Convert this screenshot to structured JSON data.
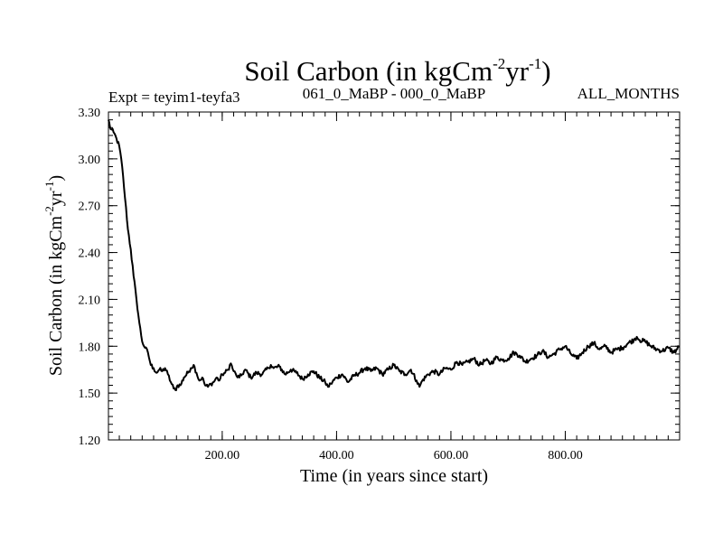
{
  "chart_data": {
    "type": "line",
    "title": {
      "text": "Soil Carbon (in kgCm",
      "sup1": "-2",
      "mid": "yr",
      "sup2": "-1",
      "end": ")"
    },
    "expt_label": "Expt = teyim1-teyfa3",
    "period_label": "061_0_MaBP - 000_0_MaBP",
    "months_label": "ALL_MONTHS",
    "xlabel": "Time (in years since start)",
    "ylabel": {
      "text": "Soil Carbon (in kgCm",
      "sup1": "-2",
      "mid": "yr",
      "sup2": "-1",
      "end": ")"
    },
    "xlim": [
      1,
      1000
    ],
    "ylim": [
      1.2,
      3.3
    ],
    "x_ticks": [
      200,
      400,
      600,
      800
    ],
    "x_tick_labels": [
      "200.00",
      "400.00",
      "600.00",
      "800.00"
    ],
    "y_ticks": [
      1.2,
      1.5,
      1.8,
      2.1,
      2.4,
      2.7,
      3.0,
      3.3
    ],
    "y_tick_labels": [
      "1.20",
      "1.50",
      "1.80",
      "2.10",
      "2.40",
      "2.70",
      "3.00",
      "3.30"
    ],
    "series": [
      {
        "name": "soil carbon",
        "color": "#000000",
        "x": [
          1,
          5,
          10,
          15,
          20,
          25,
          30,
          35,
          40,
          45,
          50,
          55,
          60,
          65,
          70,
          75,
          80,
          85,
          90,
          95,
          100,
          105,
          110,
          115,
          118,
          122,
          127,
          133,
          140,
          145,
          150,
          155,
          160,
          165,
          170,
          175,
          180,
          185,
          190,
          195,
          200,
          205,
          210,
          215,
          220,
          225,
          230,
          235,
          240,
          250,
          260,
          270,
          280,
          285,
          290,
          300,
          310,
          320,
          330,
          340,
          350,
          360,
          370,
          380,
          385,
          390,
          400,
          410,
          420,
          430,
          440,
          450,
          460,
          470,
          480,
          490,
          500,
          510,
          520,
          530,
          540,
          545,
          550,
          560,
          570,
          580,
          590,
          600,
          610,
          620,
          630,
          640,
          650,
          660,
          670,
          680,
          690,
          700,
          710,
          720,
          730,
          740,
          750,
          760,
          770,
          780,
          790,
          800,
          810,
          820,
          830,
          840,
          850,
          860,
          870,
          880,
          890,
          900,
          910,
          920,
          925,
          930,
          940,
          950,
          960,
          970,
          980,
          990,
          1000
        ],
        "y": [
          3.25,
          3.19,
          3.17,
          3.13,
          3.08,
          2.95,
          2.75,
          2.55,
          2.42,
          2.25,
          2.1,
          1.95,
          1.83,
          1.79,
          1.76,
          1.68,
          1.66,
          1.63,
          1.65,
          1.64,
          1.66,
          1.62,
          1.57,
          1.53,
          1.52,
          1.55,
          1.55,
          1.6,
          1.63,
          1.66,
          1.68,
          1.63,
          1.58,
          1.6,
          1.55,
          1.54,
          1.56,
          1.57,
          1.6,
          1.58,
          1.62,
          1.63,
          1.65,
          1.69,
          1.64,
          1.61,
          1.6,
          1.62,
          1.65,
          1.6,
          1.63,
          1.62,
          1.66,
          1.68,
          1.66,
          1.67,
          1.62,
          1.65,
          1.63,
          1.59,
          1.62,
          1.64,
          1.6,
          1.57,
          1.54,
          1.56,
          1.6,
          1.62,
          1.57,
          1.61,
          1.63,
          1.66,
          1.64,
          1.66,
          1.62,
          1.65,
          1.68,
          1.64,
          1.62,
          1.65,
          1.58,
          1.54,
          1.58,
          1.62,
          1.64,
          1.62,
          1.66,
          1.65,
          1.7,
          1.68,
          1.7,
          1.72,
          1.68,
          1.71,
          1.69,
          1.73,
          1.71,
          1.72,
          1.76,
          1.74,
          1.7,
          1.72,
          1.74,
          1.77,
          1.73,
          1.75,
          1.78,
          1.8,
          1.75,
          1.72,
          1.76,
          1.8,
          1.82,
          1.78,
          1.8,
          1.76,
          1.78,
          1.79,
          1.82,
          1.84,
          1.86,
          1.84,
          1.83,
          1.8,
          1.78,
          1.77,
          1.79,
          1.76,
          1.8
        ]
      }
    ]
  }
}
